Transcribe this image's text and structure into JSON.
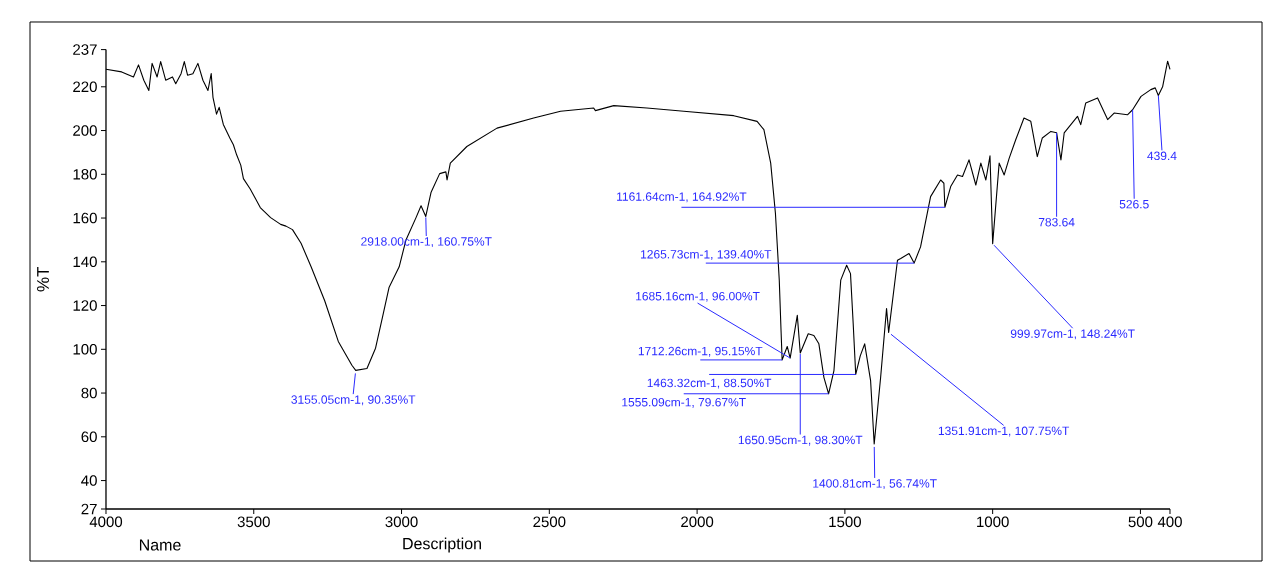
{
  "chart_data": {
    "type": "line",
    "ylabel": "%T",
    "color": "#000000",
    "xlim": [
      4000,
      400
    ],
    "ylim": [
      27,
      237
    ],
    "xticks": [
      4000,
      3500,
      3000,
      2500,
      2000,
      1500,
      1000,
      500,
      400
    ],
    "yticks": [
      27,
      40,
      60,
      80,
      100,
      120,
      140,
      160,
      180,
      200,
      220,
      237
    ],
    "x": [
      4000,
      3947,
      3907,
      3890,
      3872,
      3855,
      3844,
      3827,
      3815,
      3798,
      3775,
      3764,
      3746,
      3735,
      3724,
      3706,
      3689,
      3672,
      3655,
      3644,
      3638,
      3626,
      3617,
      3603,
      3581,
      3569,
      3558,
      3544,
      3535,
      3512,
      3478,
      3443,
      3409,
      3391,
      3369,
      3340,
      3306,
      3260,
      3214,
      3168,
      3155.05,
      3117,
      3088,
      3065,
      3042,
      3025,
      3008,
      2985,
      2951,
      2934,
      2918,
      2900,
      2871,
      2850,
      2846,
      2835,
      2779,
      2677,
      2553,
      2462,
      2350,
      2344,
      2282,
      2170,
      2045,
      1876,
      1797,
      1774,
      1751,
      1735,
      1722,
      1716,
      1712.26,
      1695,
      1685.16,
      1661,
      1650.95,
      1624,
      1605,
      1588,
      1571,
      1555.09,
      1537,
      1514,
      1494,
      1481,
      1472,
      1463.32,
      1448,
      1433,
      1413,
      1400.81,
      1379,
      1359,
      1351.91,
      1322,
      1311,
      1283,
      1265.73,
      1244,
      1210,
      1176,
      1165,
      1161.64,
      1142,
      1119,
      1102,
      1080,
      1057,
      1040,
      1023,
      1009,
      999.97,
      978,
      961,
      944,
      922,
      894,
      871,
      849,
      832,
      803,
      783.64,
      769,
      758,
      713,
      702,
      685,
      645,
      611,
      589,
      544,
      526.5,
      498,
      465,
      450,
      439.4,
      425,
      408,
      400
    ],
    "values": [
      228,
      226.8,
      224.5,
      230,
      223,
      218.3,
      230.7,
      224.5,
      231.5,
      223,
      224.5,
      221.4,
      226,
      231.5,
      225.3,
      226,
      230.7,
      223,
      218.3,
      226,
      215.2,
      207.5,
      210.6,
      202.8,
      196.6,
      193.5,
      188.9,
      184.2,
      178,
      173.3,
      164.8,
      160.2,
      157.1,
      156.3,
      154.7,
      148.5,
      137.7,
      122.2,
      103.6,
      92.7,
      90.35,
      91.2,
      100.5,
      114.4,
      128.4,
      133,
      137.7,
      150,
      160.2,
      165.6,
      160.75,
      171.8,
      180.3,
      181.1,
      177.4,
      185.1,
      192.7,
      201.1,
      205.7,
      208.8,
      210.3,
      209.1,
      211.4,
      210.3,
      208.8,
      206.8,
      204.2,
      200.4,
      185.1,
      162.2,
      131.6,
      108.6,
      95.15,
      101.3,
      96,
      115.5,
      98.3,
      107.1,
      106.3,
      102.5,
      87.2,
      79.67,
      90.3,
      131.6,
      138.4,
      134.6,
      112,
      88.5,
      97,
      102.5,
      85.7,
      56.74,
      87.2,
      118.6,
      107.75,
      140.7,
      141.5,
      143.8,
      139.4,
      146.8,
      169.8,
      177.4,
      175.9,
      164.92,
      174.4,
      179.7,
      179,
      186.6,
      175.1,
      185.1,
      177.4,
      188.4,
      148.24,
      185.1,
      179.7,
      187.4,
      195.8,
      205.7,
      204.2,
      188.1,
      196.6,
      199.6,
      199,
      186.6,
      198.9,
      206.5,
      202.7,
      212.6,
      214.9,
      205,
      208,
      207.2,
      209.5,
      215.6,
      218.7,
      219.5,
      216,
      220,
      231.7,
      228
    ],
    "annotations": [
      {
        "text": "3155.05cm-1, 90.35%T",
        "x": 3155.05,
        "y": 90.35
      },
      {
        "text": "2918.00cm-1, 160.75%T",
        "x": 2918,
        "y": 160.75
      },
      {
        "text": "1161.64cm-1, 164.92%T",
        "x": 1161.64,
        "y": 164.92
      },
      {
        "text": "1265.73cm-1, 139.40%T",
        "x": 1265.73,
        "y": 139.4
      },
      {
        "text": "1685.16cm-1, 96.00%T",
        "x": 1685.16,
        "y": 96
      },
      {
        "text": "1712.26cm-1, 95.15%T",
        "x": 1712.26,
        "y": 95.15
      },
      {
        "text": "1463.32cm-1, 88.50%T",
        "x": 1463.32,
        "y": 88.5
      },
      {
        "text": "1555.09cm-1, 79.67%T",
        "x": 1555.09,
        "y": 79.67
      },
      {
        "text": "1650.95cm-1, 98.30%T",
        "x": 1650.95,
        "y": 98.3
      },
      {
        "text": "1400.81cm-1, 56.74%T",
        "x": 1400.81,
        "y": 56.74
      },
      {
        "text": "1351.91cm-1, 107.75%T",
        "x": 1351.91,
        "y": 107.75
      },
      {
        "text": "999.97cm-1, 148.24%T",
        "x": 999.97,
        "y": 148.24
      },
      {
        "text": "783.64",
        "x": 783.64,
        "y": 199
      },
      {
        "text": "526.5",
        "x": 526.5,
        "y": 209.5
      },
      {
        "text": "439.4",
        "x": 439.4,
        "y": 216
      },
      "Name",
      "Description"
    ]
  }
}
